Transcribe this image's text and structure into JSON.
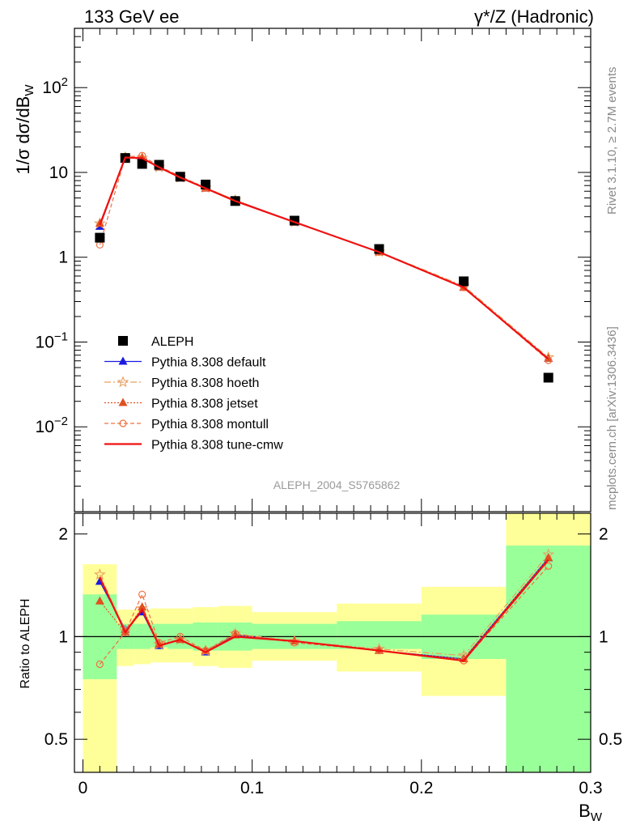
{
  "header": {
    "left": "133 GeV ee",
    "right_sym": "γ*/Z",
    "right_text": "(Hadronic)"
  },
  "side": {
    "rivet": "Rivet 3.1.10, ≥ 2.7M events",
    "mcplots": "mcplots.cern.ch [arXiv:1306.3436]"
  },
  "analysis_label": "ALEPH_2004_S5765862",
  "colors": {
    "data": "#000000",
    "default": "#1a1ae0",
    "hoeth": "#e8a060",
    "jetset": "#e05020",
    "montull": "#f07040",
    "tune_cmw": "#f01010",
    "band_inner": "#99ff99",
    "band_outer": "#ffff99"
  },
  "chart_data": [
    {
      "type": "scatter",
      "ylabel_parts": [
        "1/σ  dσ/dB",
        "W"
      ],
      "yscale": "log",
      "ylim": [
        0.001,
        500
      ],
      "xlim": [
        -0.005,
        0.3
      ],
      "ytick_labels": [
        "10^-2",
        "10^-1",
        "1",
        "10",
        "10^2"
      ],
      "x": [
        0.01,
        0.025,
        0.035,
        0.045,
        0.0575,
        0.0725,
        0.09,
        0.125,
        0.175,
        0.225,
        0.275
      ],
      "series": [
        {
          "name": "ALEPH",
          "style": "data",
          "values": [
            1.7,
            14.8,
            12.6,
            12.3,
            8.9,
            7.2,
            4.6,
            2.7,
            1.25,
            0.52,
            0.038
          ]
        },
        {
          "name": "Pythia 8.308 default",
          "style": "default",
          "values": [
            2.3,
            15.0,
            14.5,
            11.5,
            8.7,
            6.5,
            4.7,
            2.6,
            1.15,
            0.44,
            0.064
          ]
        },
        {
          "name": "Pythia 8.308 hoeth",
          "style": "hoeth",
          "values": [
            2.5,
            15.1,
            14.8,
            11.5,
            8.7,
            6.6,
            4.7,
            2.6,
            1.16,
            0.46,
            0.066
          ]
        },
        {
          "name": "Pythia 8.308 jetset",
          "style": "jetset",
          "values": [
            2.5,
            15.0,
            14.9,
            11.6,
            8.7,
            6.5,
            4.7,
            2.6,
            1.15,
            0.44,
            0.064
          ]
        },
        {
          "name": "Pythia 8.308 montull",
          "style": "montull",
          "values": [
            1.4,
            15.2,
            15.8,
            11.8,
            9.0,
            6.6,
            4.7,
            2.6,
            1.15,
            0.44,
            0.061
          ]
        },
        {
          "name": "Pythia 8.308 tune-cmw",
          "style": "tune_cmw",
          "values": [
            2.4,
            15.0,
            14.7,
            11.5,
            8.7,
            6.5,
            4.6,
            2.6,
            1.15,
            0.44,
            0.063
          ]
        }
      ]
    },
    {
      "type": "line",
      "ylabel": "Ratio to ALEPH",
      "yscale": "log",
      "ylim": [
        0.4,
        2.3
      ],
      "xlim": [
        -0.005,
        0.3
      ],
      "xlabel_parts": [
        "B",
        "W"
      ],
      "xtick_labels": [
        "0",
        "0.1",
        "0.2",
        "0.3"
      ],
      "ytick_labels": [
        "0.5",
        "1",
        "2"
      ],
      "bands": {
        "bin_edges": [
          0.0,
          0.02,
          0.03,
          0.04,
          0.05,
          0.065,
          0.08,
          0.1,
          0.15,
          0.2,
          0.25,
          0.3
        ],
        "inner_lo": [
          0.75,
          0.92,
          0.92,
          0.93,
          0.92,
          0.91,
          0.91,
          0.92,
          0.92,
          0.86,
          0.4
        ],
        "inner_hi": [
          1.33,
          1.09,
          1.09,
          1.09,
          1.09,
          1.1,
          1.1,
          1.09,
          1.11,
          1.16,
          1.85
        ],
        "outer_lo": [
          0.37,
          0.82,
          0.83,
          0.84,
          0.84,
          0.82,
          0.81,
          0.85,
          0.79,
          0.67,
          0.4
        ],
        "outer_hi": [
          1.63,
          1.2,
          1.2,
          1.21,
          1.21,
          1.22,
          1.23,
          1.18,
          1.25,
          1.4,
          2.3
        ]
      },
      "x": [
        0.01,
        0.025,
        0.035,
        0.045,
        0.0575,
        0.0725,
        0.09,
        0.125,
        0.175,
        0.225,
        0.275
      ],
      "series": [
        {
          "name": "Pythia 8.308 default",
          "style": "default",
          "values": [
            1.45,
            1.05,
            1.18,
            0.94,
            0.98,
            0.9,
            1.01,
            0.97,
            0.91,
            0.86,
            1.7
          ]
        },
        {
          "name": "Pythia 8.308 hoeth",
          "style": "hoeth",
          "values": [
            1.52,
            1.04,
            1.21,
            0.95,
            0.98,
            0.91,
            1.02,
            0.97,
            0.92,
            0.88,
            1.74
          ]
        },
        {
          "name": "Pythia 8.308 jetset",
          "style": "jetset",
          "values": [
            1.27,
            1.03,
            1.22,
            0.95,
            0.98,
            0.91,
            1.01,
            0.97,
            0.91,
            0.86,
            1.7
          ]
        },
        {
          "name": "Pythia 8.308 montull",
          "style": "montull",
          "values": [
            0.83,
            1.03,
            1.33,
            0.96,
            1.0,
            0.91,
            1.02,
            0.96,
            0.91,
            0.85,
            1.61
          ]
        },
        {
          "name": "Pythia 8.308 tune-cmw",
          "style": "tune_cmw",
          "values": [
            1.49,
            1.03,
            1.2,
            0.94,
            0.98,
            0.9,
            1.0,
            0.97,
            0.91,
            0.85,
            1.68
          ]
        }
      ]
    }
  ]
}
